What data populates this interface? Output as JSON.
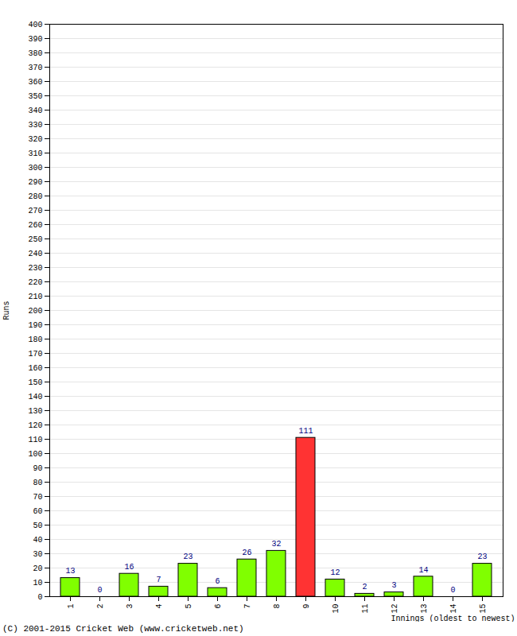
{
  "chart_data": {
    "type": "bar",
    "categories": [
      "1",
      "2",
      "3",
      "4",
      "5",
      "6",
      "7",
      "8",
      "9",
      "10",
      "11",
      "12",
      "13",
      "14",
      "15"
    ],
    "values": [
      13,
      0,
      16,
      7,
      23,
      6,
      26,
      32,
      111,
      12,
      2,
      3,
      14,
      0,
      23
    ],
    "colors": [
      "#80ff00",
      "#80ff00",
      "#80ff00",
      "#80ff00",
      "#80ff00",
      "#80ff00",
      "#80ff00",
      "#80ff00",
      "#ff3333",
      "#80ff00",
      "#80ff00",
      "#80ff00",
      "#80ff00",
      "#80ff00",
      "#80ff00"
    ],
    "x_label": "Innings (oldest to newest)",
    "y_label": "Runs",
    "caption": "(C) 2001-2015 Cricket Web (www.cricketweb.net)",
    "ylim": [
      0,
      400
    ],
    "yticks": [
      0,
      10,
      20,
      30,
      40,
      50,
      60,
      70,
      80,
      90,
      100,
      110,
      120,
      130,
      140,
      150,
      160,
      170,
      180,
      190,
      200,
      210,
      220,
      230,
      240,
      250,
      260,
      270,
      280,
      290,
      300,
      310,
      320,
      330,
      340,
      350,
      360,
      370,
      380,
      390,
      400
    ],
    "grid": true,
    "data_labels": true
  }
}
